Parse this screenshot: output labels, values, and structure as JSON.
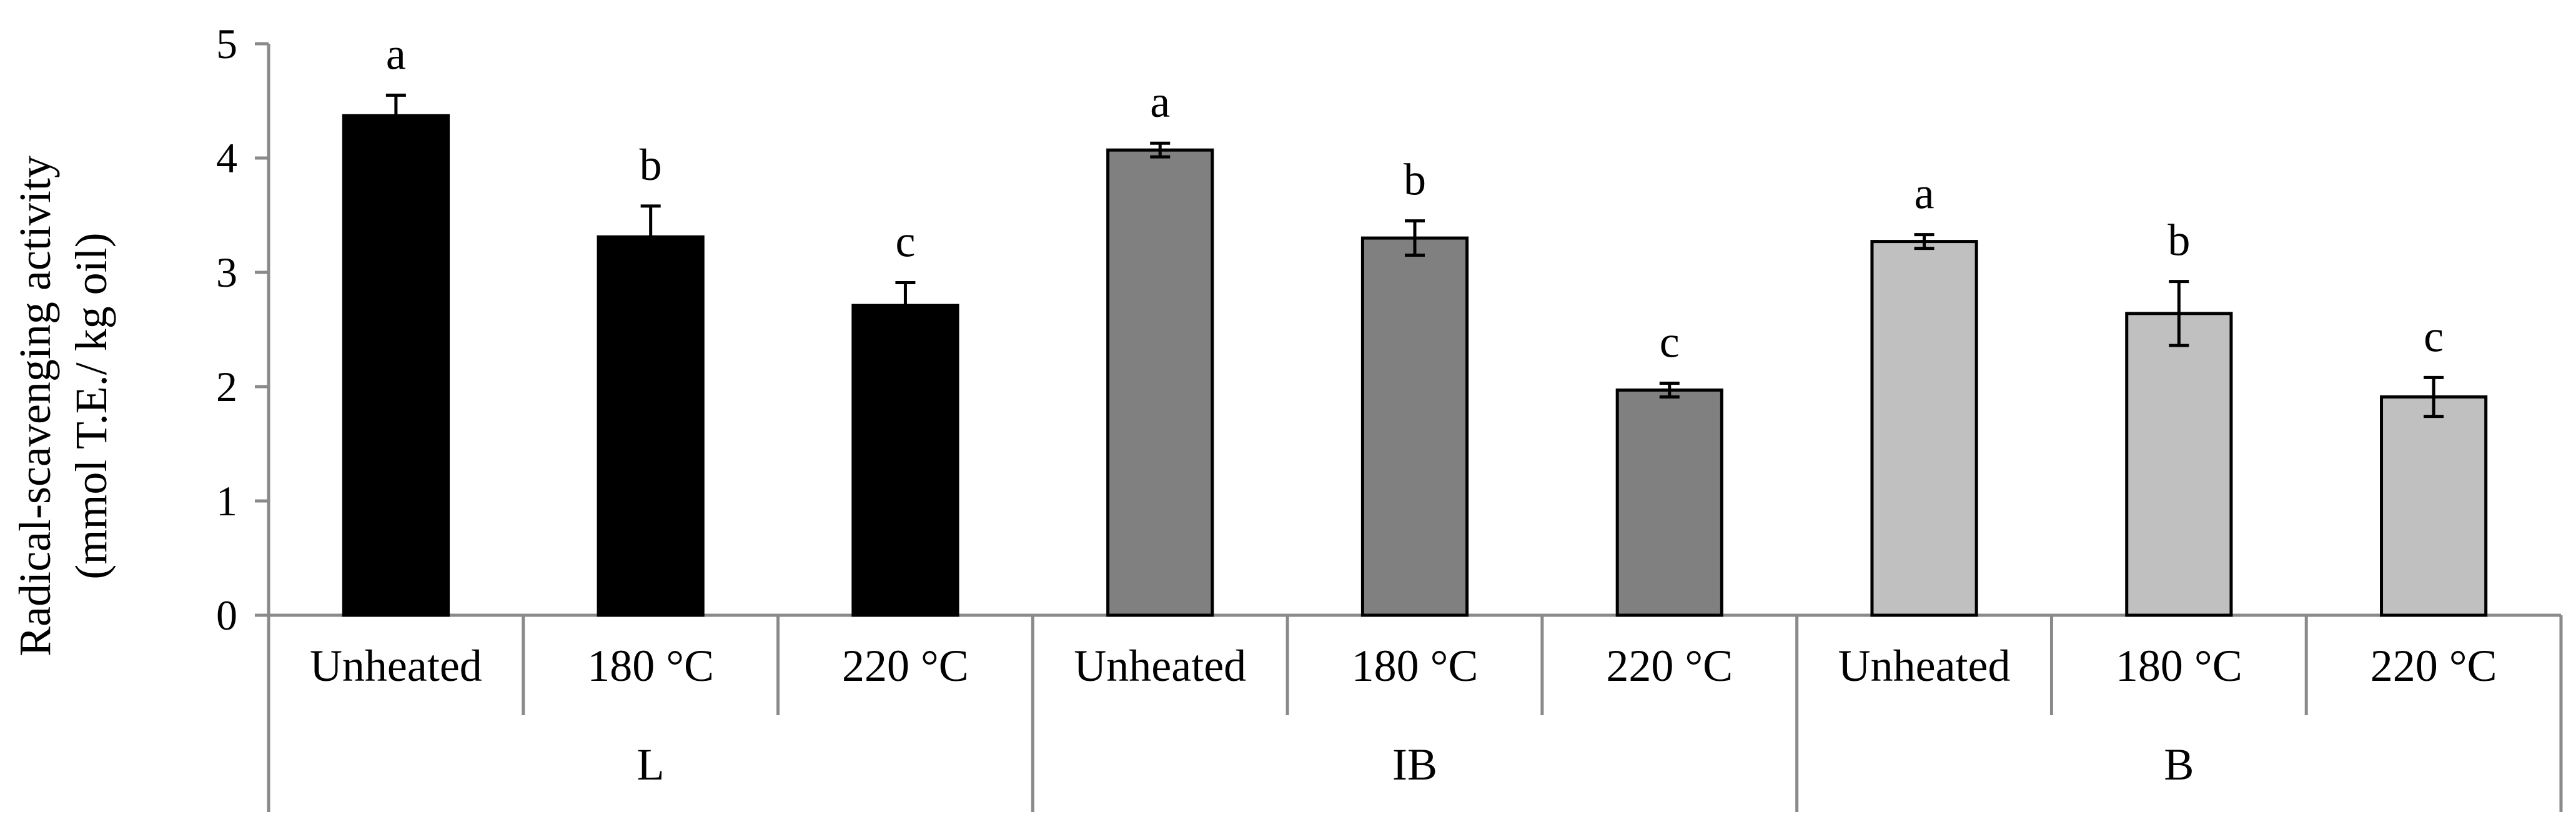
{
  "chart_data": {
    "type": "bar",
    "title": "",
    "xlabel": "",
    "ylabel": [
      "Radical-scavenging activity",
      "(mmol T.E./ kg oil)"
    ],
    "ylim": [
      0,
      5
    ],
    "yticks": [
      "0",
      "1",
      "2",
      "3",
      "4",
      "5"
    ],
    "groups": [
      {
        "name": "L",
        "color": "#000000",
        "bars": [
          {
            "category": "Unheated",
            "value": 4.37,
            "error": 0.18,
            "letter": "a"
          },
          {
            "category": "180 °C",
            "value": 3.31,
            "error": 0.27,
            "letter": "b"
          },
          {
            "category": "220 °C",
            "value": 2.71,
            "error": 0.2,
            "letter": "c"
          }
        ]
      },
      {
        "name": "IB",
        "color": "#808080",
        "bars": [
          {
            "category": "Unheated",
            "value": 4.07,
            "error": 0.06,
            "letter": "a"
          },
          {
            "category": "180 °C",
            "value": 3.3,
            "error": 0.15,
            "letter": "b"
          },
          {
            "category": "220 °C",
            "value": 1.97,
            "error": 0.06,
            "letter": "c"
          }
        ]
      },
      {
        "name": "B",
        "color": "#c0c0c0",
        "bars": [
          {
            "category": "Unheated",
            "value": 3.27,
            "error": 0.06,
            "letter": "a"
          },
          {
            "category": "180 °C",
            "value": 2.64,
            "error": 0.28,
            "letter": "b"
          },
          {
            "category": "220 °C",
            "value": 1.91,
            "error": 0.17,
            "letter": "c"
          }
        ]
      }
    ]
  }
}
